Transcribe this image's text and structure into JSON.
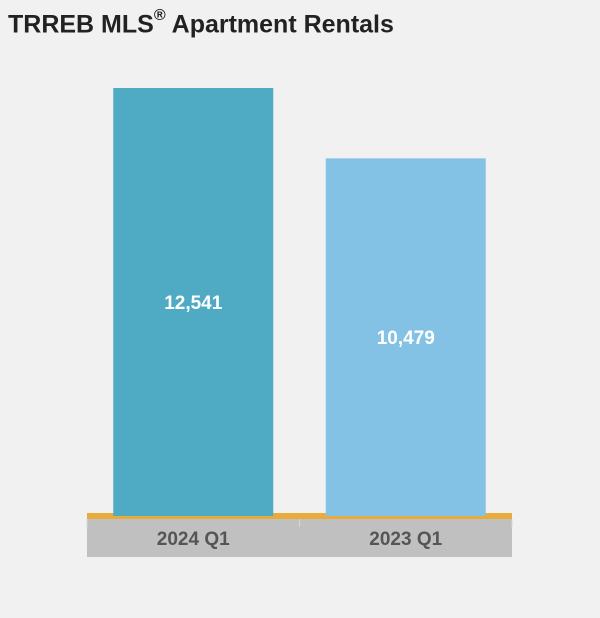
{
  "title": {
    "main": "TRREB MLS",
    "symbol": "®",
    "rest": " Apartment Rentals"
  },
  "chart_data": {
    "type": "bar",
    "categories": [
      "2024 Q1",
      "2023 Q1"
    ],
    "values": [
      12541,
      10479
    ],
    "value_labels": [
      "12,541",
      "10,479"
    ],
    "colors": [
      "#4fabc4",
      "#83c2e5"
    ],
    "axis_color": "#e9ac3c",
    "category_band_color": "#c0c0c0",
    "ylim": [
      0,
      12541
    ],
    "grid": false
  }
}
